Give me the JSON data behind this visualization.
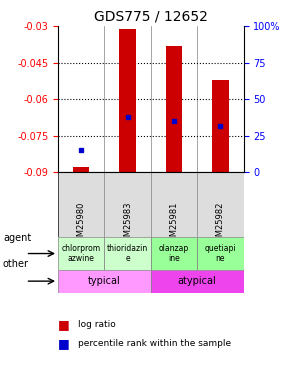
{
  "title": "GDS775 / 12652",
  "samples": [
    "GSM25980",
    "GSM25983",
    "GSM25981",
    "GSM25982"
  ],
  "log_ratios": [
    -0.088,
    -0.031,
    -0.038,
    -0.052
  ],
  "percentile_ranks": [
    15,
    38,
    35,
    32
  ],
  "ylim_left": [
    -0.09,
    -0.03
  ],
  "ylim_right": [
    0,
    100
  ],
  "yticks_left": [
    -0.09,
    -0.075,
    -0.06,
    -0.045,
    -0.03
  ],
  "yticks_right": [
    0,
    25,
    50,
    75,
    100
  ],
  "agent_texts": [
    "chlorprom\nazwine",
    "thioridazin\ne",
    "olanzap\nine",
    "quetiapi\nne"
  ],
  "agent_colors": [
    "#ccffcc",
    "#ccffcc",
    "#99ff99",
    "#99ff99"
  ],
  "other_segments": [
    {
      "label": "typical",
      "start": 0,
      "end": 2,
      "color": "#ff99ff"
    },
    {
      "label": "atypical",
      "start": 2,
      "end": 4,
      "color": "#ee44ee"
    }
  ],
  "bar_color": "#cc0000",
  "dot_color": "#0000cc",
  "bar_bottom": -0.09,
  "pct_scale_min": -0.09,
  "pct_scale_max": -0.03,
  "grid_yticks": [
    -0.045,
    -0.06,
    -0.075
  ]
}
